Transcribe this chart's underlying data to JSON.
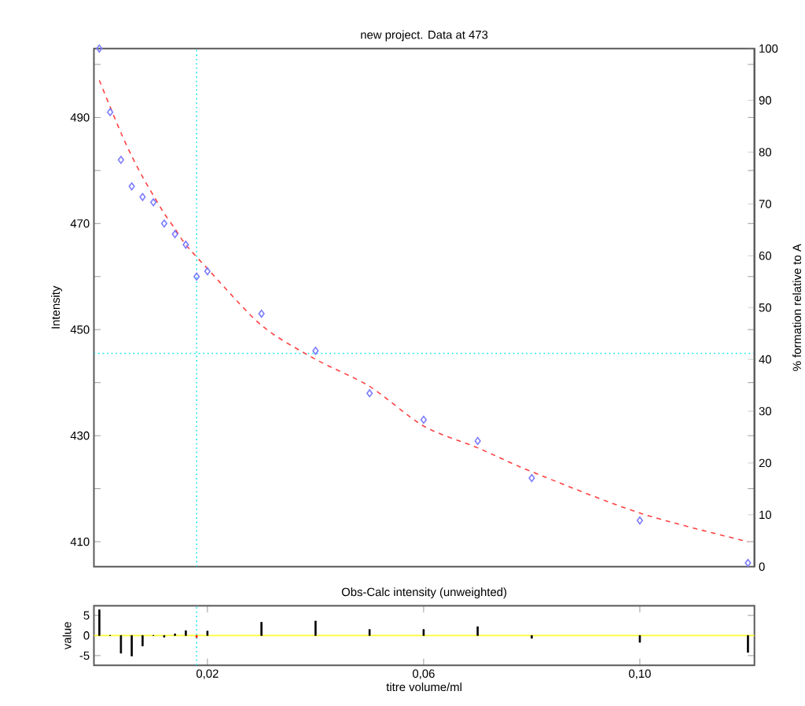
{
  "chart_data": [
    {
      "type": "scatter",
      "title": "new project. Data at 473",
      "ylabel": "Intensity",
      "y2label": "% formation relative to A",
      "xlim": [
        -0.001,
        0.1212
      ],
      "ylim": [
        405.3,
        503
      ],
      "y2lim": [
        0,
        100
      ],
      "yticks": [
        410,
        {
          "value": 420,
          "label": null
        },
        430,
        {
          "value": 440,
          "label": null
        },
        450,
        {
          "value": 460,
          "label": null
        },
        470,
        {
          "value": 480,
          "label": null
        },
        490,
        {
          "value": 500,
          "label": null
        }
      ],
      "y2ticks": [
        0,
        10,
        20,
        30,
        40,
        50,
        60,
        70,
        80,
        90,
        100
      ],
      "tick_labels": "y",
      "series": [
        {
          "type": "scatter",
          "color": "#7b7bff",
          "marker": "diamond",
          "x": [
            0,
            0.002,
            0.004,
            0.006,
            0.008,
            0.01,
            0.012,
            0.014,
            0.016,
            0.018,
            0.02,
            0.03,
            0.04,
            0.05,
            0.06,
            0.07,
            0.08,
            0.1,
            0.12
          ],
          "values": [
            503,
            491,
            482,
            477,
            475,
            474,
            470,
            468,
            466,
            460,
            461,
            453,
            446,
            438,
            433,
            429,
            422,
            414,
            406
          ]
        },
        {
          "type": "line",
          "color": "#ff4040",
          "line_style": "dashed",
          "x": [
            0,
            0.002,
            0.004,
            0.006,
            0.008,
            0.01,
            0.012,
            0.014,
            0.016,
            0.02,
            0.03,
            0.04,
            0.05,
            0.06,
            0.07,
            0.08,
            0.1,
            0.12
          ],
          "values": [
            497,
            492,
            487.1,
            482.7,
            478.8,
            475.3,
            471.9,
            469,
            466,
            461.5,
            450.8,
            444.4,
            439.3,
            431.8,
            427.7,
            423.2,
            415.4,
            410
          ]
        }
      ],
      "ref_lines": [
        {
          "axis": "x",
          "value": 0.018,
          "color": "#00e5ee",
          "line_style": "dotted"
        },
        {
          "axis": "y",
          "value": 445.5,
          "color": "#00e5ee",
          "line_style": "dotted"
        }
      ]
    },
    {
      "type": "bar",
      "title": "Obs-Calc intensity (unweighted)",
      "xlabel": "titre volume/ml",
      "ylabel": "value",
      "xlim": [
        -0.001,
        0.1212
      ],
      "ylim": [
        -7.4,
        7.4
      ],
      "xticks": [
        {
          "value": 0.02,
          "label": "0,02"
        },
        {
          "value": 0.06,
          "label": "0,06"
        },
        {
          "value": 0.1,
          "label": "0,10"
        }
      ],
      "yticks": [
        -5,
        0,
        5
      ],
      "x": [
        0,
        0.002,
        0.004,
        0.006,
        0.008,
        0.01,
        0.012,
        0.014,
        0.016,
        0.018,
        0.02,
        0.03,
        0.04,
        0.05,
        0.06,
        0.07,
        0.08,
        0.1,
        0.12
      ],
      "values": [
        6.4,
        0,
        -4.4,
        -5.1,
        -2.6,
        0,
        -0.4,
        0.4,
        1.2,
        -0.5,
        1.1,
        3.3,
        3.6,
        1.5,
        1.5,
        2.2,
        -0.7,
        -1.7,
        -4.2
      ],
      "colors": [
        "#000000",
        "#000000",
        "#000000",
        "#000000",
        "#000000",
        "#000000",
        "#000000",
        "#000000",
        "#000000",
        "#ff0000",
        "#000000",
        "#000000",
        "#000000",
        "#000000",
        "#000000",
        "#000000",
        "#000000",
        "#000000",
        "#000000"
      ],
      "ref_lines": [
        {
          "axis": "y",
          "value": 0,
          "color": "#ffff33",
          "line_style": "solid"
        },
        {
          "axis": "x",
          "value": 0.018,
          "color": "#00e5ee",
          "line_style": "dotted"
        }
      ]
    }
  ]
}
